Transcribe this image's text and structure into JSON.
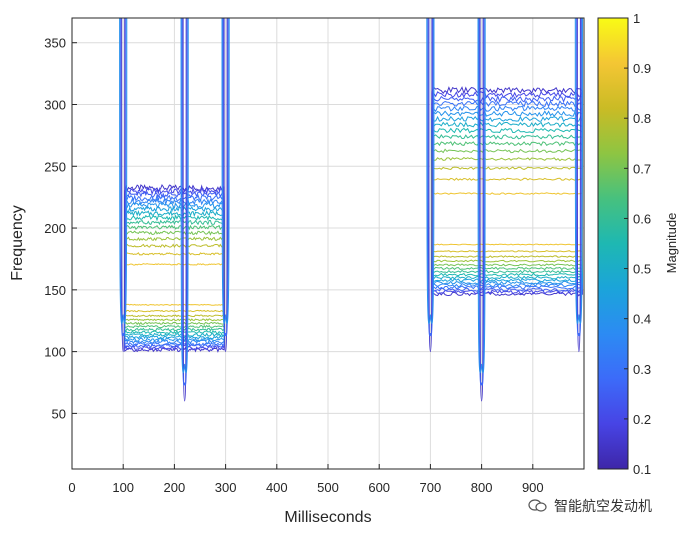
{
  "chart_data": {
    "type": "contour",
    "xlabel": "Milliseconds",
    "ylabel": "Frequency",
    "xlim": [
      0,
      1000
    ],
    "ylim": [
      5,
      370
    ],
    "xticks": [
      0,
      100,
      200,
      300,
      400,
      500,
      600,
      700,
      800,
      900
    ],
    "yticks": [
      50,
      100,
      150,
      200,
      250,
      300,
      350
    ],
    "grid": true,
    "colorbar": {
      "label": "Magnitude",
      "range": [
        0.1,
        1
      ],
      "ticks": [
        0.1,
        0.2,
        0.3,
        0.4,
        0.5,
        0.6,
        0.7,
        0.8,
        0.9,
        1
      ]
    },
    "contour_levels": [
      0.15,
      0.2,
      0.25,
      0.3,
      0.35,
      0.4,
      0.45,
      0.5,
      0.55,
      0.6,
      0.65,
      0.7,
      0.75,
      0.8,
      0.85,
      0.9
    ],
    "bursts": [
      {
        "start_ms": 100,
        "end_ms": 300,
        "low_hz": 100,
        "high_hz": 235,
        "peak_hz": 150,
        "splits_ms": [
          220
        ]
      },
      {
        "start_ms": 700,
        "end_ms": 1000,
        "low_hz": 145,
        "high_hz": 315,
        "peak_hz": 200,
        "splits_ms": [
          800
        ]
      }
    ],
    "transients_ms": [
      100,
      220,
      300,
      700,
      800,
      990
    ]
  },
  "colors": {
    "colormap": [
      "#3e26a8",
      "#4744e5",
      "#3c6bf9",
      "#2c8bf3",
      "#1ba4da",
      "#1eb8b2",
      "#47c17e",
      "#8ec542",
      "#cabb25",
      "#f4c634",
      "#f9fb15"
    ],
    "grid": "#dcdcdc",
    "axis": "#262626"
  },
  "watermark": {
    "text": "智能航空发动机",
    "icon": "wechat-icon"
  }
}
